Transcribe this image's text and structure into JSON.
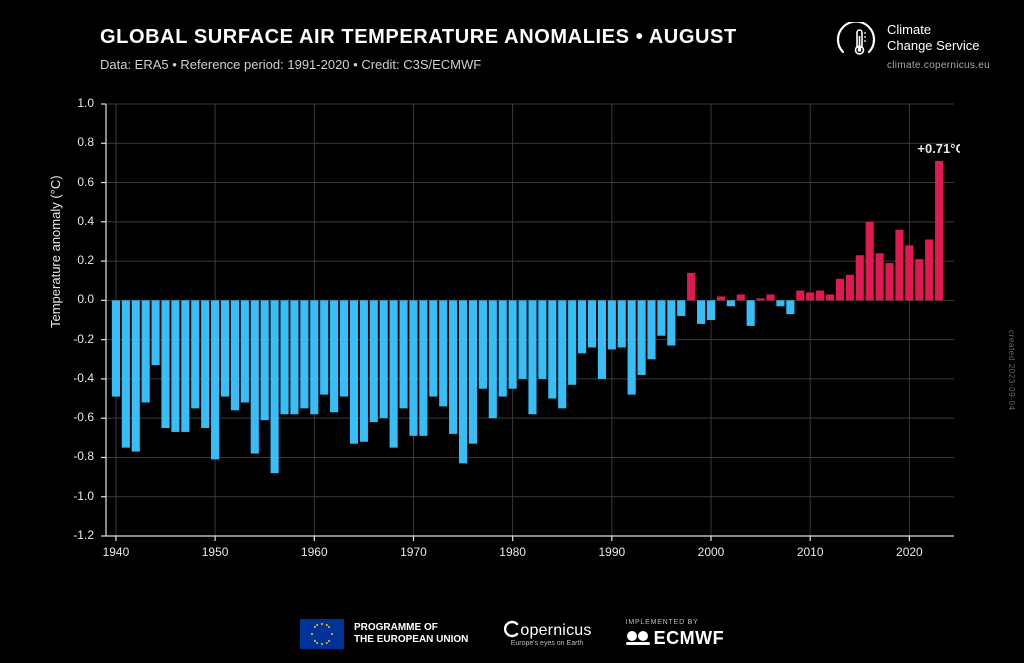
{
  "header": {
    "title": "GLOBAL SURFACE AIR TEMPERATURE ANOMALIES • AUGUST",
    "subtitle": "Data: ERA5 • Reference period: 1991-2020 • Credit: C3S/ECMWF"
  },
  "brand": {
    "line1": "Climate",
    "line2": "Change Service",
    "url": "climate.copernicus.eu"
  },
  "ylabel": "Temperature anomaly (°C)",
  "chart": {
    "type": "bar",
    "background_color": "#000000",
    "grid_color": "#3a3a3a",
    "axis_color": "#e0e0e0",
    "tick_fontsize": 12,
    "bar_gap_ratio": 0.18,
    "neg_color": "#38bdf6",
    "pos_color": "#e01a4f",
    "xlim": [
      1939,
      2024.5
    ],
    "ylim": [
      -1.2,
      1.0
    ],
    "yticks": [
      -1.2,
      -1.0,
      -0.8,
      -0.6,
      -0.4,
      -0.2,
      0.0,
      0.2,
      0.4,
      0.6,
      0.8,
      1.0
    ],
    "xticks": [
      1940,
      1950,
      1960,
      1970,
      1980,
      1990,
      2000,
      2010,
      2020
    ],
    "callout": {
      "year": 2023,
      "value": 0.71,
      "text": "+0.71°C"
    },
    "years_start": 1940,
    "values": [
      -0.49,
      -0.75,
      -0.77,
      -0.52,
      -0.33,
      -0.65,
      -0.67,
      -0.67,
      -0.55,
      -0.65,
      -0.81,
      -0.49,
      -0.56,
      -0.52,
      -0.78,
      -0.61,
      -0.88,
      -0.58,
      -0.58,
      -0.55,
      -0.58,
      -0.48,
      -0.57,
      -0.49,
      -0.73,
      -0.72,
      -0.62,
      -0.6,
      -0.75,
      -0.55,
      -0.69,
      -0.69,
      -0.49,
      -0.54,
      -0.68,
      -0.83,
      -0.73,
      -0.45,
      -0.6,
      -0.49,
      -0.45,
      -0.4,
      -0.58,
      -0.4,
      -0.5,
      -0.55,
      -0.43,
      -0.27,
      -0.24,
      -0.4,
      -0.25,
      -0.24,
      -0.48,
      -0.38,
      -0.3,
      -0.18,
      -0.23,
      -0.08,
      0.14,
      -0.12,
      -0.1,
      0.02,
      -0.03,
      0.03,
      -0.13,
      0.01,
      0.03,
      -0.03,
      -0.07,
      0.05,
      0.04,
      0.05,
      0.03,
      0.11,
      0.13,
      0.23,
      0.4,
      0.24,
      0.19,
      0.36,
      0.28,
      0.21,
      0.31,
      0.71
    ]
  },
  "footer": {
    "eu_line1": "PROGRAMME OF",
    "eu_line2": "THE EUROPEAN UNION",
    "copernicus": "opernicus",
    "copernicus_tag": "Europe's eyes on Earth",
    "implemented": "IMPLEMENTED BY",
    "ecmwf": "ECMWF"
  },
  "side_credit": "created 2023-09-04"
}
